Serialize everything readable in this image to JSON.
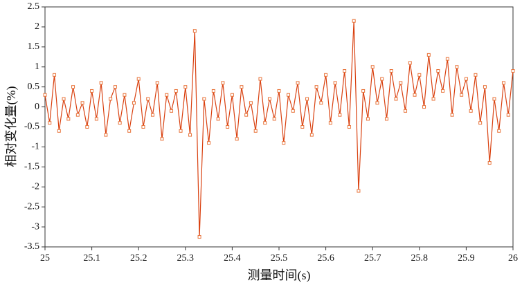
{
  "chart_data": {
    "type": "line",
    "xlabel": "测量时间(s)",
    "ylabel": "相对变化量(%)",
    "xlim": [
      25,
      26
    ],
    "xticks": [
      25,
      25.1,
      25.2,
      25.3,
      25.4,
      25.5,
      25.6,
      25.7,
      25.8,
      25.9,
      26
    ],
    "ylim": [
      -3.5,
      2.5
    ],
    "yticks": [
      -3.5,
      -3,
      -2.5,
      -2,
      -1.5,
      -1,
      -0.5,
      0,
      0.5,
      1,
      1.5,
      2,
      2.5
    ],
    "series": [
      {
        "color": "#d9400f",
        "marker_color": "#e8743b",
        "x": [
          25,
          25.01,
          25.02,
          25.03,
          25.04,
          25.05,
          25.06,
          25.07,
          25.08,
          25.09,
          25.1,
          25.11,
          25.12,
          25.13,
          25.14,
          25.15,
          25.16,
          25.17,
          25.18,
          25.19,
          25.2,
          25.21,
          25.22,
          25.23,
          25.24,
          25.25,
          25.26,
          25.27,
          25.28,
          25.29,
          25.3,
          25.31,
          25.32,
          25.33,
          25.34,
          25.35,
          25.36,
          25.37,
          25.38,
          25.39,
          25.4,
          25.41,
          25.42,
          25.43,
          25.44,
          25.45,
          25.46,
          25.47,
          25.48,
          25.49,
          25.5,
          25.51,
          25.52,
          25.53,
          25.54,
          25.55,
          25.56,
          25.57,
          25.58,
          25.59,
          25.6,
          25.61,
          25.62,
          25.63,
          25.64,
          25.65,
          25.66,
          25.67,
          25.68,
          25.69,
          25.7,
          25.71,
          25.72,
          25.73,
          25.74,
          25.75,
          25.76,
          25.77,
          25.78,
          25.79,
          25.8,
          25.81,
          25.82,
          25.83,
          25.84,
          25.85,
          25.86,
          25.87,
          25.88,
          25.89,
          25.9,
          25.91,
          25.92,
          25.93,
          25.94,
          25.95,
          25.96,
          25.97,
          25.98,
          25.99,
          26
        ],
        "values": [
          0.3,
          -0.4,
          0.8,
          -0.6,
          0.2,
          -0.3,
          0.5,
          -0.2,
          0.1,
          -0.5,
          0.4,
          -0.3,
          0.6,
          -0.7,
          0.2,
          0.5,
          -0.4,
          0.3,
          -0.6,
          0.1,
          0.7,
          -0.5,
          0.2,
          -0.2,
          0.6,
          -0.8,
          0.3,
          -0.1,
          0.4,
          -0.6,
          0.5,
          -0.7,
          1.9,
          -3.25,
          0.2,
          -0.9,
          0.4,
          -0.3,
          0.6,
          -0.5,
          0.3,
          -0.8,
          0.5,
          -0.2,
          0.1,
          -0.6,
          0.7,
          -0.4,
          0.2,
          -0.3,
          0.4,
          -0.9,
          0.3,
          -0.1,
          0.6,
          -0.5,
          0.2,
          -0.7,
          0.5,
          0.1,
          0.8,
          -0.4,
          0.6,
          -0.2,
          0.9,
          -0.5,
          2.15,
          -2.1,
          0.4,
          -0.3,
          1.0,
          0.1,
          0.7,
          -0.3,
          0.9,
          0.2,
          0.6,
          -0.1,
          1.1,
          0.3,
          0.8,
          0.0,
          1.3,
          0.2,
          0.9,
          0.4,
          1.2,
          -0.2,
          1.0,
          0.3,
          0.7,
          -0.1,
          0.8,
          -0.4,
          0.5,
          -1.4,
          0.2,
          -0.6,
          0.6,
          -0.2,
          0.9
        ]
      }
    ]
  }
}
